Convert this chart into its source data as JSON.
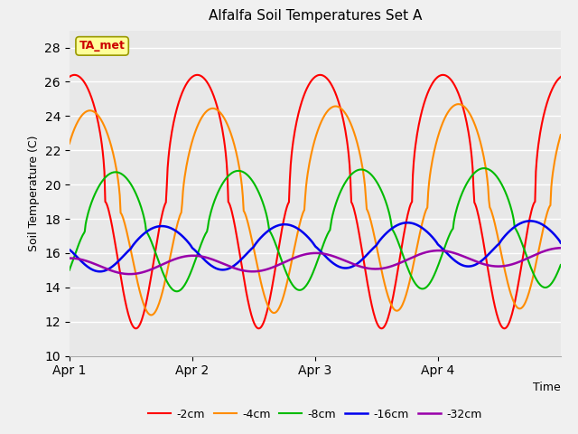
{
  "title": "Alfalfa Soil Temperatures Set A",
  "xlabel": "Time",
  "ylabel": "Soil Temperature (C)",
  "ylim": [
    10,
    29
  ],
  "yticks": [
    10,
    12,
    14,
    16,
    18,
    20,
    22,
    24,
    26,
    28
  ],
  "fig_bg_color": "#f0f0f0",
  "plot_bg_color": "#e8e8e8",
  "annotation_text": "TA_met",
  "annotation_bg": "#ffff99",
  "annotation_border": "#999900",
  "annotation_text_color": "#cc0000",
  "legend_entries": [
    "-2cm",
    "-4cm",
    "-8cm",
    "-16cm",
    "-32cm"
  ],
  "line_colors": [
    "#ff0000",
    "#ff8c00",
    "#00bb00",
    "#0000ee",
    "#9900aa"
  ],
  "line_widths": [
    1.5,
    1.5,
    1.5,
    1.8,
    1.8
  ],
  "x_ticks_positions": [
    0,
    48,
    96,
    144
  ],
  "x_ticks_labels": [
    "Apr 1",
    "Apr 2",
    "Apr 3",
    "Apr 4"
  ],
  "xlim": [
    0,
    192
  ]
}
